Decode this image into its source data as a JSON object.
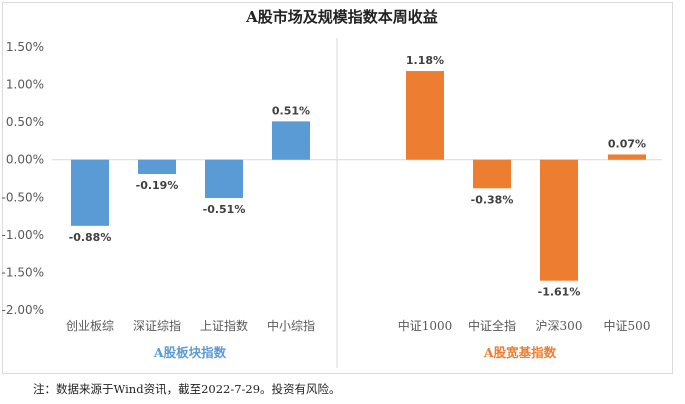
{
  "chart_data": {
    "type": "bar",
    "title": "A股市场及规模指数本周收益",
    "y_tick_labels": [
      "1.50%",
      "1.00%",
      "0.50%",
      "0.00%",
      "-0.50%",
      "-1.00%",
      "-1.50%",
      "-2.00%"
    ],
    "ylim": [
      -2.0,
      1.5
    ],
    "grid": false,
    "groups": [
      {
        "name": "A股板块指数",
        "color": "#5b9bd5",
        "categories": [
          "创业板综",
          "深证综指",
          "上证指数",
          "中小综指"
        ],
        "values": [
          -0.88,
          -0.19,
          -0.51,
          0.51
        ],
        "labels": [
          "-0.88%",
          "-0.19%",
          "-0.51%",
          "0.51%"
        ]
      },
      {
        "name": "A股宽基指数",
        "color": "#ed7d31",
        "categories": [
          "中证1000",
          "中证全指",
          "沪深300",
          "中证500"
        ],
        "values": [
          1.18,
          -0.38,
          -1.61,
          0.07
        ],
        "labels": [
          "1.18%",
          "-0.38%",
          "-1.61%",
          "0.07%"
        ]
      }
    ]
  },
  "footnote": "注：数据来源于Wind资讯，截至2022-7-29。投资有风险。"
}
